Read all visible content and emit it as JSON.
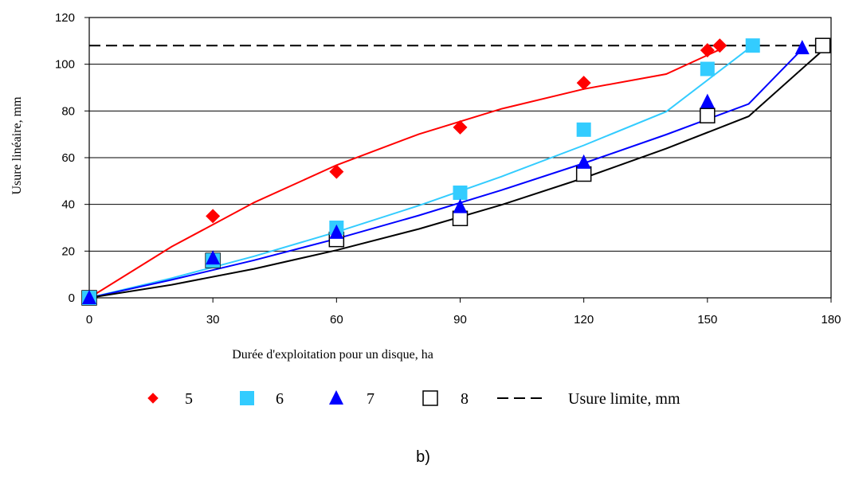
{
  "chart_data": {
    "type": "scatter",
    "xlabel": "Durée d'exploitation pour un disque, ha",
    "ylabel": "Usure linéaire, mm",
    "xlim": [
      0,
      180
    ],
    "ylim": [
      0,
      120
    ],
    "xticks": [
      "0",
      "30",
      "60",
      "90",
      "120",
      "150",
      "180"
    ],
    "yticks": [
      "0",
      "20",
      "40",
      "60",
      "80",
      "100",
      "120"
    ],
    "grid": "horizontal",
    "legend_position": "bottom",
    "series": [
      {
        "name": "5",
        "marker": "diamond",
        "color": "#ff0000",
        "points": [
          [
            0,
            0
          ],
          [
            30,
            35
          ],
          [
            60,
            54
          ],
          [
            90,
            73
          ],
          [
            120,
            92
          ],
          [
            150,
            106
          ],
          [
            153,
            108
          ]
        ],
        "trend": [
          [
            0,
            0
          ],
          [
            20,
            21.9
          ],
          [
            40,
            40.8
          ],
          [
            60,
            56.8
          ],
          [
            80,
            70.1
          ],
          [
            100,
            80.9
          ],
          [
            120,
            89.4
          ],
          [
            140,
            95.8
          ],
          [
            153,
            106.3
          ]
        ]
      },
      {
        "name": "6",
        "marker": "square",
        "color": "#33ccff",
        "points": [
          [
            0,
            0
          ],
          [
            30,
            16
          ],
          [
            60,
            30
          ],
          [
            90,
            45
          ],
          [
            120,
            72
          ],
          [
            150,
            98
          ],
          [
            161,
            108
          ]
        ],
        "trend": [
          [
            0,
            0
          ],
          [
            20,
            8.4
          ],
          [
            40,
            17.8
          ],
          [
            60,
            28.2
          ],
          [
            80,
            39.5
          ],
          [
            100,
            51.9
          ],
          [
            120,
            65.3
          ],
          [
            140,
            79.7
          ],
          [
            161,
            108
          ]
        ]
      },
      {
        "name": "7",
        "marker": "triangle",
        "color": "#0000ff",
        "points": [
          [
            0,
            0
          ],
          [
            30,
            17
          ],
          [
            60,
            28
          ],
          [
            90,
            39
          ],
          [
            120,
            58
          ],
          [
            150,
            84
          ],
          [
            173,
            107
          ]
        ],
        "trend": [
          [
            0,
            0
          ],
          [
            20,
            7.7
          ],
          [
            40,
            16.1
          ],
          [
            60,
            25.3
          ],
          [
            80,
            35.3
          ],
          [
            100,
            46.1
          ],
          [
            120,
            57.6
          ],
          [
            140,
            69.9
          ],
          [
            160,
            83
          ],
          [
            173,
            106.5
          ]
        ]
      },
      {
        "name": "8",
        "marker": "open-square",
        "color": "#000000",
        "points": [
          [
            0,
            0
          ],
          [
            30,
            16
          ],
          [
            60,
            25
          ],
          [
            90,
            34
          ],
          [
            120,
            53
          ],
          [
            150,
            78
          ],
          [
            178,
            108
          ]
        ],
        "trend": [
          [
            0,
            0
          ],
          [
            20,
            5.6
          ],
          [
            40,
            12.4
          ],
          [
            60,
            20.4
          ],
          [
            80,
            29.5
          ],
          [
            100,
            39.8
          ],
          [
            120,
            51.3
          ],
          [
            140,
            63.9
          ],
          [
            160,
            77.7
          ],
          [
            178,
            106
          ]
        ]
      },
      {
        "name": "Usure limite, mm",
        "marker": "dashed-line",
        "color": "#000000",
        "points": [
          [
            0,
            108
          ],
          [
            180,
            108
          ]
        ]
      }
    ]
  },
  "caption": "b)"
}
